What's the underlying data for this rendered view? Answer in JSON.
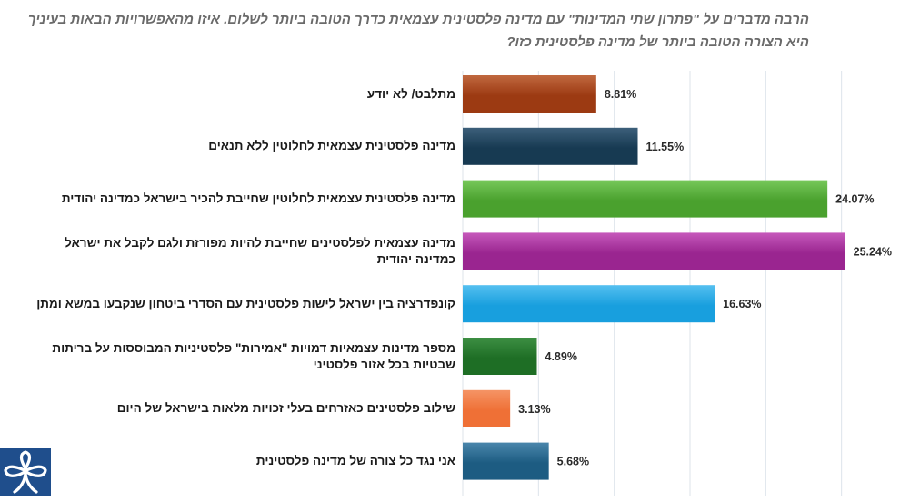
{
  "chart_data": {
    "type": "bar",
    "orientation": "horizontal",
    "title": "הרבה מדברים על \"פתרון שתי המדינות\" עם מדינה פלסטינית עצמאית כדרך הטובה ביותר לשלום. איזו מהאפשרויות הבאות בעיניך היא הצורה הטובה ביותר של מדינה פלסטינית כזו?",
    "xlabel": "",
    "ylabel": "",
    "xlim": [
      0,
      30
    ],
    "grid": true,
    "categories": [
      "מתלבט/ לא יודע",
      "מדינה פלסטינית עצמאית לחלוטין ללא תנאים",
      "מדינה פלסטינית עצמאית לחלוטין שחייבת להכיר בישראל כמדינה יהודית",
      "מדינה עצמאית לפלסטינים שחייבת להיות מפורזת ולגם לקבל את ישראל כמדינה יהודית",
      "קונפדרציה בין ישראל לישות פלסטינית עם הסדרי ביטחון שנקבעו במשא ומתן",
      "מספר מדינות עצמאיות דמויות \"אמירות\" פלסטיניות המבוססות על בריתות שבטיות בכל אזור פלסטיני",
      "שילוב פלסטינים כאזרחים בעלי זכויות מלאות בישראל של היום",
      "אני נגד כל צורה של מדינה פלסטינית"
    ],
    "values": [
      8.81,
      11.55,
      24.07,
      25.24,
      16.63,
      4.89,
      3.13,
      5.68
    ],
    "value_labels": [
      "8.81%",
      "11.55%",
      "24.07%",
      "25.24%",
      "16.63%",
      "4.89%",
      "3.13%",
      "5.68%"
    ],
    "colors": [
      "#9c3a12",
      "#173a52",
      "#4aa12e",
      "#9a2590",
      "#189fde",
      "#1e6e25",
      "#ef7036",
      "#1d5c82"
    ],
    "colors_light": [
      "#c0683f",
      "#3c5f7a",
      "#77c85a",
      "#c659bb",
      "#55c0f0",
      "#3d8f43",
      "#f59465",
      "#4a86ab"
    ]
  }
}
